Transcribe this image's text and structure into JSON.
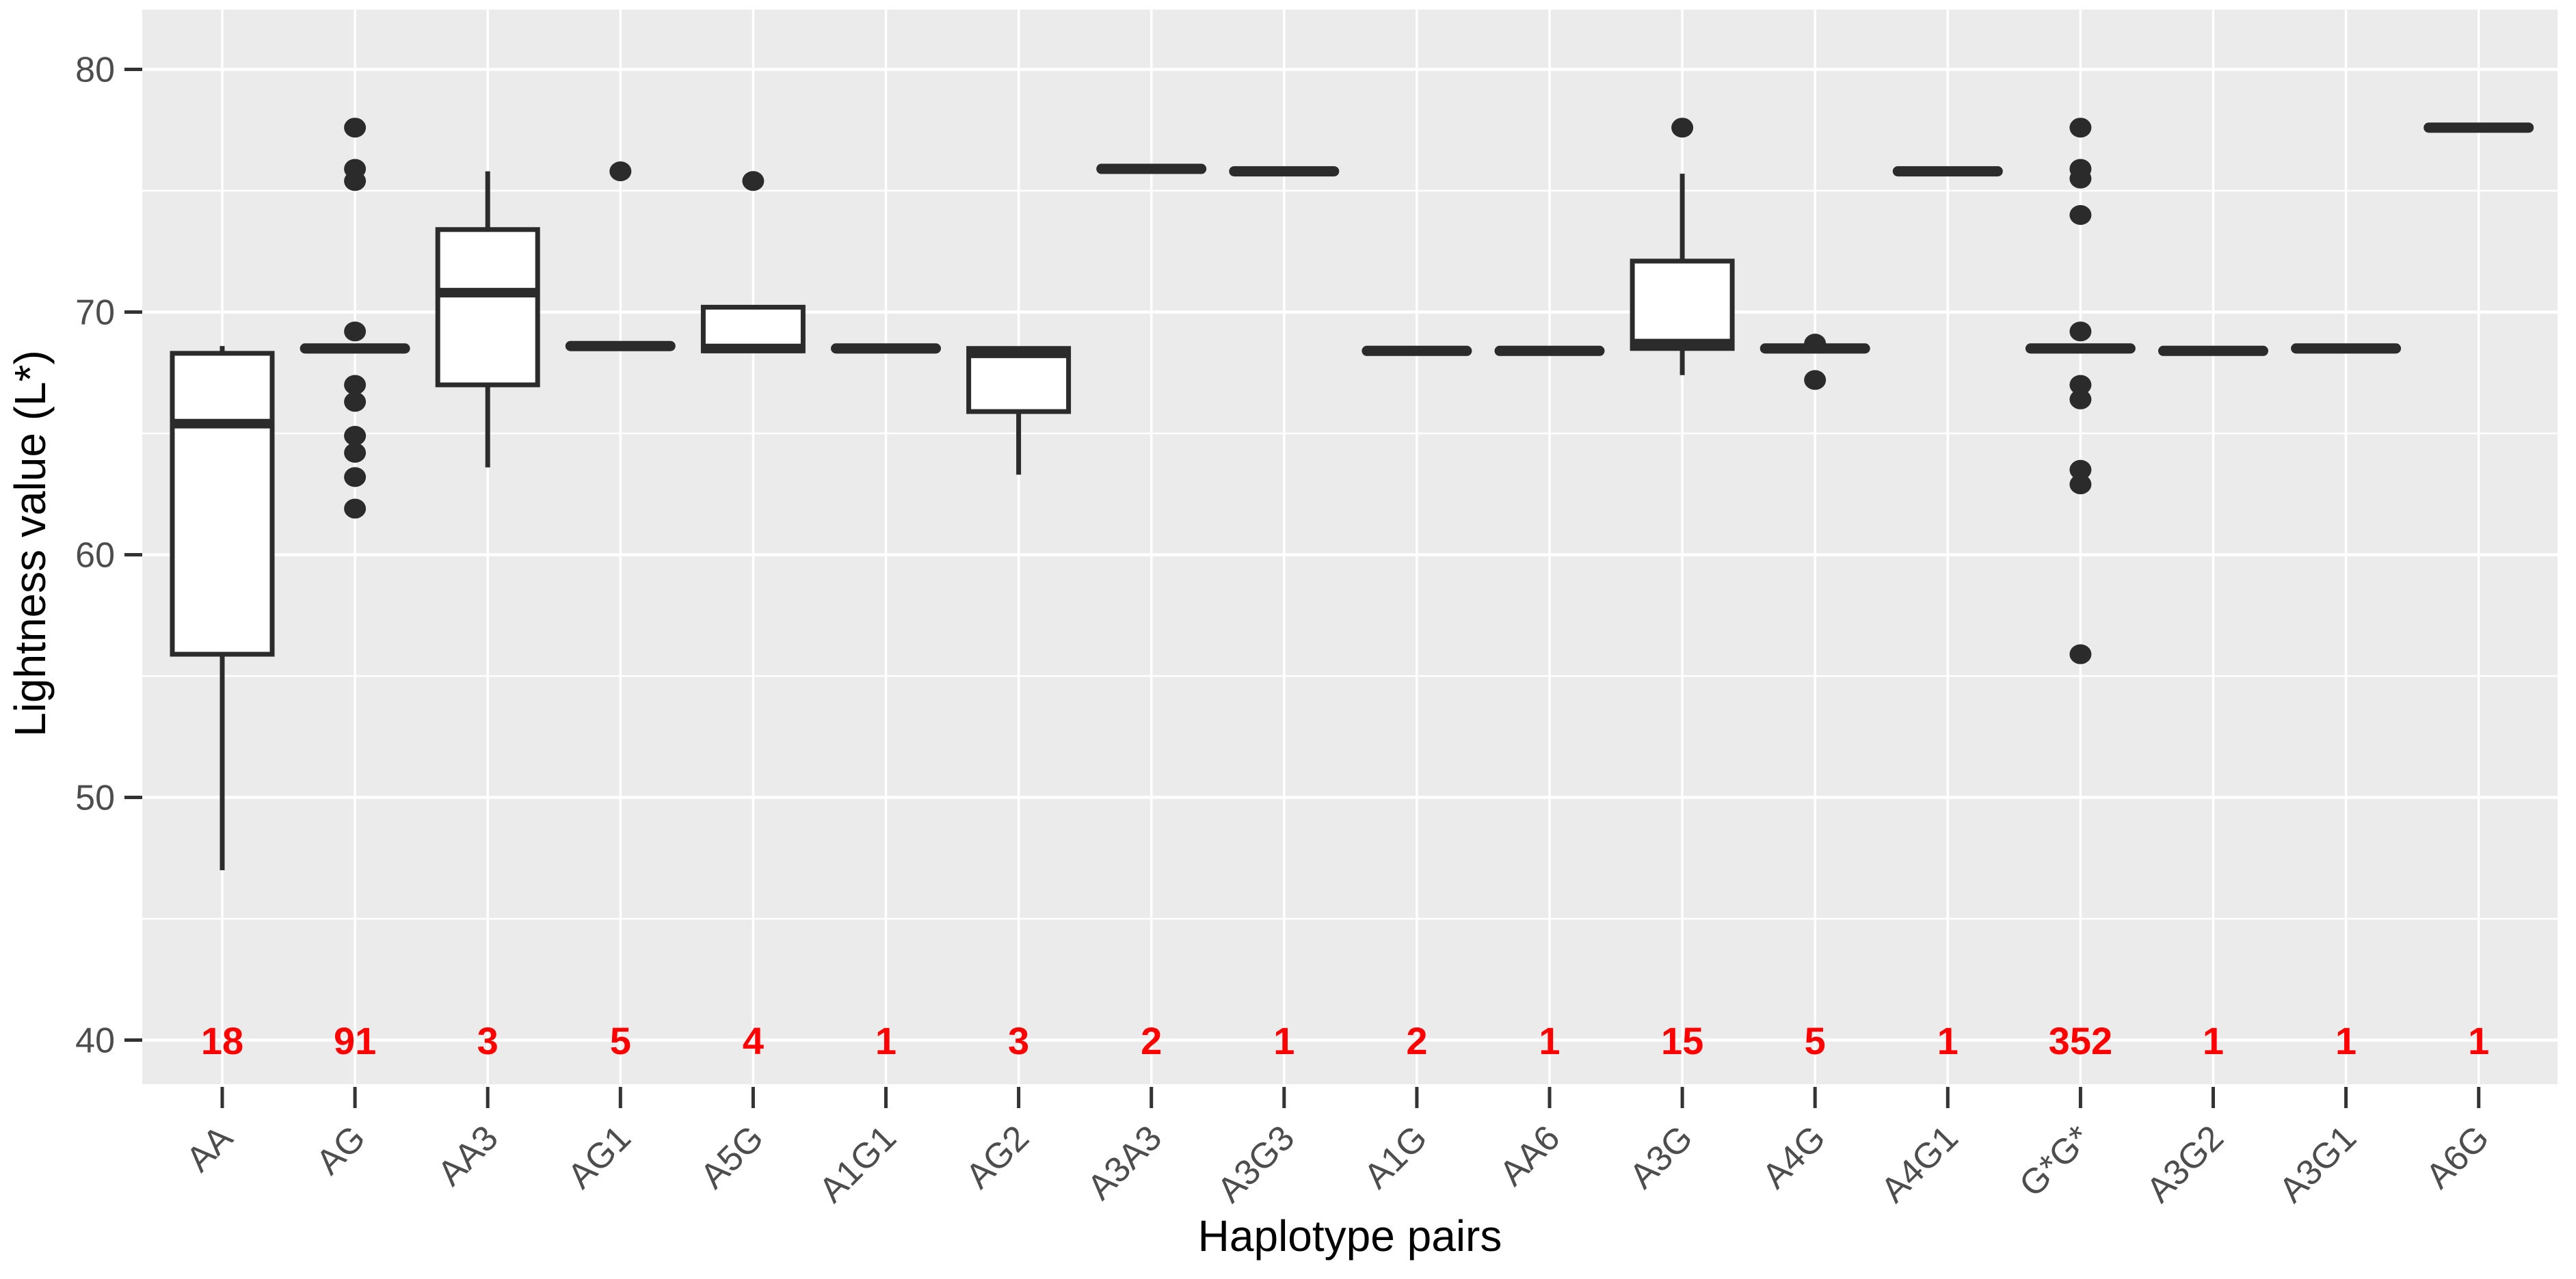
{
  "chart_data": {
    "type": "boxplot",
    "title": "",
    "xlabel": "Haplotype pairs",
    "ylabel": "Lightness value (L*)",
    "ylim": [
      38.2,
      82.5
    ],
    "y_ticks": [
      40,
      50,
      60,
      70,
      80
    ],
    "y_minor_ticks": [
      45,
      55,
      65,
      75
    ],
    "grid": "white major+minor horizontal gridlines and one vertical gridline per category on gray panel",
    "legend": "none",
    "counts_note": "red sample-size labels drawn at the y=40 gridline under each box",
    "colors": {
      "panel_bg": "#ebebeb",
      "grid": "#ffffff",
      "box_stroke": "#2b2b2b",
      "box_fill": "#ffffff",
      "outlier": "#2b2b2b",
      "tick_mark": "#333333",
      "tick_text": "#4d4d4d",
      "count_text": "#ff0000",
      "axis_title": "#000000"
    },
    "categories": [
      "AA",
      "AG",
      "AA3",
      "AG1",
      "A5G",
      "A1G1",
      "AG2",
      "A3A3",
      "A3G3",
      "A1G",
      "AA6",
      "A3G",
      "A4G",
      "A4G1",
      "G*G*",
      "A3G2",
      "A3G1",
      "A6G"
    ],
    "sample_sizes": [
      18,
      91,
      3,
      5,
      4,
      1,
      3,
      2,
      1,
      2,
      1,
      15,
      5,
      1,
      352,
      1,
      1,
      1
    ],
    "boxes": [
      {
        "label": "AA",
        "n": 18,
        "low": 47.0,
        "q1": 55.9,
        "median": 65.4,
        "q3": 68.3,
        "high": 68.6,
        "outliers": []
      },
      {
        "label": "AG",
        "n": 91,
        "low": 68.5,
        "q1": 68.5,
        "median": 68.5,
        "q3": 68.5,
        "high": 68.5,
        "outliers": [
          77.6,
          75.9,
          75.4,
          69.2,
          67.0,
          66.3,
          64.9,
          64.2,
          63.2,
          61.9
        ]
      },
      {
        "label": "AA3",
        "n": 3,
        "low": 63.6,
        "q1": 67.0,
        "median": 70.8,
        "q3": 73.4,
        "high": 75.8,
        "outliers": []
      },
      {
        "label": "AG1",
        "n": 5,
        "low": 68.6,
        "q1": 68.6,
        "median": 68.6,
        "q3": 68.6,
        "high": 68.6,
        "outliers": [
          75.8
        ]
      },
      {
        "label": "A5G",
        "n": 4,
        "low": 68.4,
        "q1": 68.4,
        "median": 68.5,
        "q3": 70.2,
        "high": 70.2,
        "outliers": [
          75.4
        ]
      },
      {
        "label": "A1G1",
        "n": 1,
        "low": 68.5,
        "q1": 68.5,
        "median": 68.5,
        "q3": 68.5,
        "high": 68.5,
        "outliers": []
      },
      {
        "label": "AG2",
        "n": 3,
        "low": 63.3,
        "q1": 65.9,
        "median": 68.3,
        "q3": 68.5,
        "high": 68.5,
        "outliers": []
      },
      {
        "label": "A3A3",
        "n": 2,
        "low": 75.9,
        "q1": 75.9,
        "median": 75.9,
        "q3": 75.9,
        "high": 75.9,
        "outliers": []
      },
      {
        "label": "A3G3",
        "n": 1,
        "low": 75.8,
        "q1": 75.8,
        "median": 75.8,
        "q3": 75.8,
        "high": 75.8,
        "outliers": []
      },
      {
        "label": "A1G",
        "n": 2,
        "low": 68.4,
        "q1": 68.4,
        "median": 68.4,
        "q3": 68.4,
        "high": 68.4,
        "outliers": []
      },
      {
        "label": "AA6",
        "n": 1,
        "low": 68.4,
        "q1": 68.4,
        "median": 68.4,
        "q3": 68.4,
        "high": 68.4,
        "outliers": []
      },
      {
        "label": "A3G",
        "n": 15,
        "low": 67.4,
        "q1": 68.5,
        "median": 68.7,
        "q3": 72.1,
        "high": 75.7,
        "outliers": [
          77.6
        ]
      },
      {
        "label": "A4G",
        "n": 5,
        "low": 68.5,
        "q1": 68.5,
        "median": 68.5,
        "q3": 68.5,
        "high": 68.5,
        "outliers": [
          68.7,
          67.2
        ]
      },
      {
        "label": "A4G1",
        "n": 1,
        "low": 75.8,
        "q1": 75.8,
        "median": 75.8,
        "q3": 75.8,
        "high": 75.8,
        "outliers": []
      },
      {
        "label": "G*G*",
        "n": 352,
        "low": 68.5,
        "q1": 68.5,
        "median": 68.5,
        "q3": 68.5,
        "high": 68.5,
        "outliers": [
          77.6,
          75.9,
          75.5,
          74.0,
          69.2,
          67.0,
          66.4,
          63.5,
          62.9,
          55.9
        ]
      },
      {
        "label": "A3G2",
        "n": 1,
        "low": 68.4,
        "q1": 68.4,
        "median": 68.4,
        "q3": 68.4,
        "high": 68.4,
        "outliers": []
      },
      {
        "label": "A3G1",
        "n": 1,
        "low": 68.5,
        "q1": 68.5,
        "median": 68.5,
        "q3": 68.5,
        "high": 68.5,
        "outliers": []
      },
      {
        "label": "A6G",
        "n": 1,
        "low": 77.6,
        "q1": 77.6,
        "median": 77.6,
        "q3": 77.6,
        "high": 77.6,
        "outliers": []
      }
    ]
  }
}
